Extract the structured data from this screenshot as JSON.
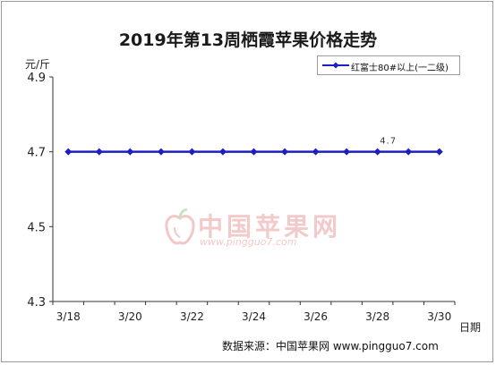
{
  "chart_data": {
    "type": "line",
    "title": "2019年第13周栖霞苹果价格走势",
    "ylabel": "元/斤",
    "xlabel": "日期",
    "ylim": [
      4.3,
      4.9
    ],
    "yticks": [
      "4.3",
      "4.5",
      "4.7",
      "4.9"
    ],
    "x": [
      "3/18",
      "3/19",
      "3/20",
      "3/21",
      "3/22",
      "3/23",
      "3/24",
      "3/25",
      "3/26",
      "3/27",
      "3/28",
      "3/29",
      "3/30"
    ],
    "xtick_labels": [
      "3/18",
      "3/20",
      "3/22",
      "3/24",
      "3/26",
      "3/28",
      "3/30"
    ],
    "grid": false,
    "legend": "top-right",
    "series": [
      {
        "name": "红富士80#以上(一二级)",
        "color": "#1f1fbf",
        "values": [
          4.7,
          4.7,
          4.7,
          4.7,
          4.7,
          4.7,
          4.7,
          4.7,
          4.7,
          4.7,
          4.7,
          4.7,
          4.7
        ]
      }
    ],
    "annotations": [
      {
        "label": "4.7",
        "index": 10
      }
    ]
  },
  "watermark": {
    "text": "中国苹果网",
    "url": "www.pingguo7.com",
    "icon": "apple-logo-icon"
  },
  "source": "数据来源：中国苹果网 www.pingguo7.com"
}
